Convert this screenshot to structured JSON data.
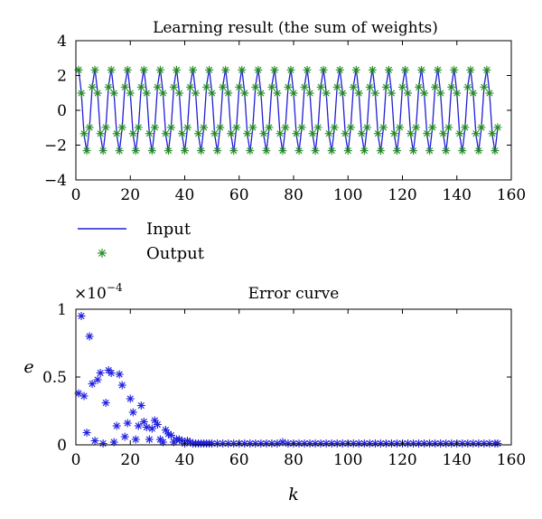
{
  "colors": {
    "input": "#1f1fd6",
    "output": "#1f8a1f",
    "error": "#1f1fe0",
    "axis": "#000000"
  },
  "chart_data": [
    {
      "type": "line",
      "title": "Learning result (the sum of weights)",
      "xlabel": "",
      "ylabel": "",
      "xlim": [
        0,
        160
      ],
      "ylim": [
        -4,
        4
      ],
      "xticks": [
        0,
        20,
        40,
        60,
        80,
        100,
        120,
        140,
        160
      ],
      "yticks": [
        -4,
        -2,
        0,
        2,
        4
      ],
      "xtick_labels": [
        "0",
        "20",
        "40",
        "60",
        "80",
        "100",
        "120",
        "140",
        "160"
      ],
      "ytick_labels": [
        "−4",
        "−2",
        "0",
        "2",
        "4"
      ],
      "grid": false,
      "legend": {
        "placement": "below-left",
        "entries": [
          "Input",
          "Output"
        ]
      },
      "signal": {
        "amplitude": 2.4,
        "period": 6.0,
        "phase_deg": 35,
        "k_start": 1,
        "k_end": 155
      },
      "series": [
        {
          "name": "Input",
          "style": "line"
        },
        {
          "name": "Output",
          "style": "star-markers"
        }
      ]
    },
    {
      "type": "scatter",
      "title": "Error curve",
      "xlabel": "k",
      "ylabel": "e",
      "scale_note": "×10−4",
      "scale_base": "×10",
      "scale_exp": "−4",
      "xlim": [
        0,
        160
      ],
      "ylim": [
        0,
        1
      ],
      "xticks": [
        0,
        20,
        40,
        60,
        80,
        100,
        120,
        140,
        160
      ],
      "yticks": [
        0,
        0.5,
        1
      ],
      "xtick_labels": [
        "0",
        "20",
        "40",
        "60",
        "80",
        "100",
        "120",
        "140",
        "160"
      ],
      "ytick_labels": [
        "0",
        "0.5",
        "1"
      ],
      "grid": false,
      "series": [
        {
          "style": "star-markers",
          "x": [
            1,
            2,
            3,
            4,
            5,
            6,
            7,
            8,
            9,
            10,
            11,
            12,
            13,
            14,
            15,
            16,
            17,
            18,
            19,
            20,
            21,
            22,
            23,
            24,
            25,
            26,
            27,
            28,
            29,
            30,
            31,
            32,
            33,
            34,
            35,
            36,
            37,
            38,
            39,
            40,
            41,
            42,
            43,
            44,
            45,
            46,
            47,
            48,
            49,
            50,
            52,
            54,
            56,
            58,
            60,
            62,
            64,
            66,
            68,
            70,
            72,
            74,
            76,
            78,
            80,
            82,
            84,
            86,
            88,
            90,
            92,
            94,
            96,
            98,
            100,
            102,
            104,
            106,
            108,
            110,
            112,
            114,
            116,
            118,
            120,
            122,
            124,
            126,
            128,
            130,
            132,
            134,
            136,
            138,
            140,
            142,
            144,
            146,
            148,
            150,
            152,
            154,
            155
          ],
          "y": [
            0.38,
            0.95,
            0.36,
            0.09,
            0.8,
            0.45,
            0.03,
            0.48,
            0.53,
            0.01,
            0.31,
            0.55,
            0.53,
            0.02,
            0.14,
            0.52,
            0.44,
            0.06,
            0.16,
            0.34,
            0.24,
            0.04,
            0.14,
            0.29,
            0.17,
            0.13,
            0.04,
            0.12,
            0.18,
            0.15,
            0.04,
            0.02,
            0.11,
            0.08,
            0.07,
            0.02,
            0.04,
            0.04,
            0.03,
            0.01,
            0.03,
            0.02,
            0.01,
            0.01,
            0.01,
            0.01,
            0.01,
            0.01,
            0.01,
            0.01,
            0.01,
            0.01,
            0.01,
            0.01,
            0.01,
            0.01,
            0.01,
            0.01,
            0.01,
            0.01,
            0.01,
            0.01,
            0.02,
            0.01,
            0.01,
            0.01,
            0.01,
            0.01,
            0.01,
            0.01,
            0.01,
            0.01,
            0.01,
            0.01,
            0.01,
            0.01,
            0.01,
            0.01,
            0.01,
            0.01,
            0.01,
            0.01,
            0.01,
            0.01,
            0.01,
            0.01,
            0.01,
            0.01,
            0.01,
            0.01,
            0.01,
            0.01,
            0.01,
            0.01,
            0.01,
            0.01,
            0.01,
            0.01,
            0.01,
            0.01,
            0.01,
            0.01,
            0.01
          ]
        }
      ]
    }
  ]
}
